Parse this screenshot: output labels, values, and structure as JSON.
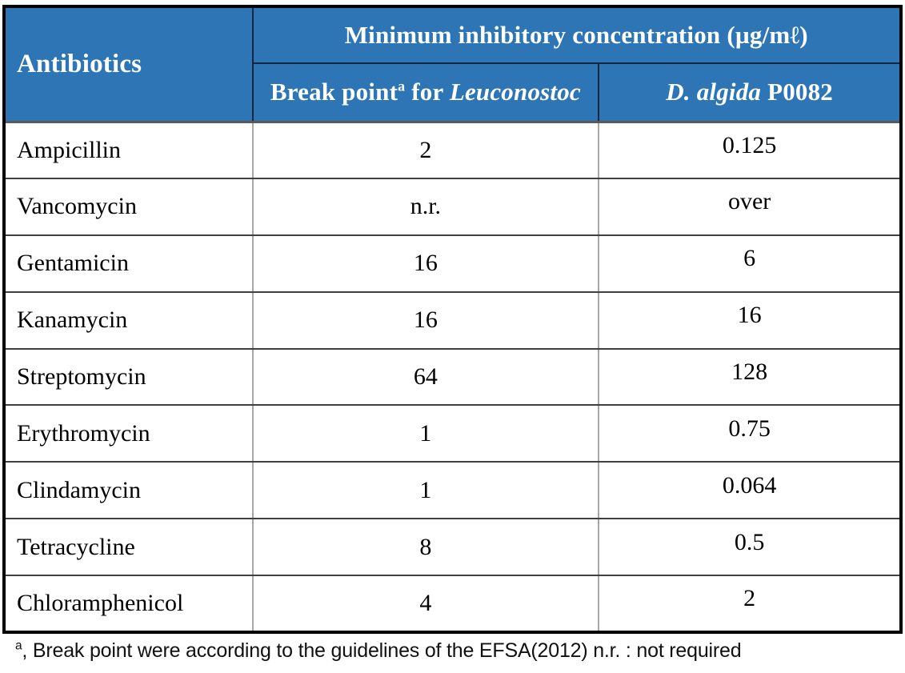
{
  "colors": {
    "header_bg": "#2e75b6",
    "header_text": "#ffffff",
    "body_horizontal_line": "#404040",
    "body_vertical_line": "#a6a6a6",
    "outer_border": "#000000"
  },
  "table": {
    "header": {
      "antibiotics_label": "Antibiotics",
      "mic_title": "Minimum inhibitory concentration (µg/mℓ)",
      "breakpoint": {
        "prefix": "Break point",
        "superscript": "a",
        "middle": " for ",
        "genus": "Leuconostoc"
      },
      "strain": {
        "species": "D. algida",
        "code": " P0082"
      }
    },
    "rows": [
      {
        "antibiotic": "Ampicillin",
        "breakpoint": "2",
        "p0082": "0.125"
      },
      {
        "antibiotic": "Vancomycin",
        "breakpoint": "n.r.",
        "p0082": "over"
      },
      {
        "antibiotic": "Gentamicin",
        "breakpoint": "16",
        "p0082": "6"
      },
      {
        "antibiotic": "Kanamycin",
        "breakpoint": "16",
        "p0082": "16"
      },
      {
        "antibiotic": "Streptomycin",
        "breakpoint": "64",
        "p0082": "128"
      },
      {
        "antibiotic": "Erythromycin",
        "breakpoint": "1",
        "p0082": "0.75"
      },
      {
        "antibiotic": "Clindamycin",
        "breakpoint": "1",
        "p0082": "0.064"
      },
      {
        "antibiotic": "Tetracycline",
        "breakpoint": "8",
        "p0082": "0.5"
      },
      {
        "antibiotic": "Chloramphenicol",
        "breakpoint": "4",
        "p0082": "2"
      }
    ]
  },
  "footnote": {
    "superscript": "a",
    "text": ", Break point were according to the guidelines of the EFSA(2012) n.r. : not required"
  }
}
